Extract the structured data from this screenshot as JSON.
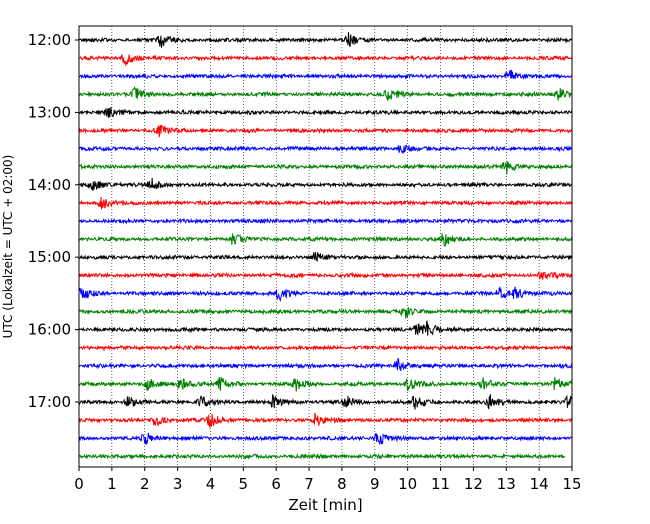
{
  "chart_data": {
    "type": "line",
    "subtype": "helicorder",
    "xlabel": "Zeit  [min]",
    "ylabel": "UTC (Lokalzeit = UTC + 02:00)",
    "xlim": [
      0,
      15
    ],
    "x_ticks": [
      0,
      1,
      2,
      3,
      4,
      5,
      6,
      7,
      8,
      9,
      10,
      11,
      12,
      13,
      14,
      15
    ],
    "x_tick_labels": [
      "0",
      "1",
      "2",
      "3",
      "4",
      "5",
      "6",
      "7",
      "8",
      "9",
      "10",
      "11",
      "12",
      "13",
      "14",
      "15"
    ],
    "y_tick_labels": [
      "12:00",
      "13:00",
      "14:00",
      "15:00",
      "16:00",
      "17:00"
    ],
    "trace_interval_min": 15,
    "grid": "vertical dotted at each minute",
    "colors": [
      "#000000",
      "#ff0000",
      "#0000ff",
      "#008000"
    ],
    "traces": [
      {
        "start": "12:00",
        "end_min": 15,
        "color": "#000000",
        "events": [
          2.5,
          8.2
        ]
      },
      {
        "start": "12:15",
        "end_min": 15,
        "color": "#ff0000",
        "events": [
          1.4
        ]
      },
      {
        "start": "12:30",
        "end_min": 15,
        "color": "#0000ff",
        "events": [
          13.1
        ]
      },
      {
        "start": "12:45",
        "end_min": 15,
        "color": "#008000",
        "events": [
          1.7,
          9.4,
          14.6
        ]
      },
      {
        "start": "13:00",
        "end_min": 15,
        "color": "#000000",
        "events": [
          0.9
        ]
      },
      {
        "start": "13:15",
        "end_min": 15,
        "color": "#ff0000",
        "events": [
          2.4
        ]
      },
      {
        "start": "13:30",
        "end_min": 15,
        "color": "#0000ff",
        "events": [
          9.8
        ]
      },
      {
        "start": "13:45",
        "end_min": 15,
        "color": "#008000",
        "events": [
          13.0
        ]
      },
      {
        "start": "14:00",
        "end_min": 15,
        "color": "#000000",
        "events": [
          0.4,
          2.2
        ]
      },
      {
        "start": "14:15",
        "end_min": 15,
        "color": "#ff0000",
        "events": [
          0.7
        ]
      },
      {
        "start": "14:30",
        "end_min": 15,
        "color": "#0000ff",
        "events": []
      },
      {
        "start": "14:45",
        "end_min": 15,
        "color": "#008000",
        "events": [
          4.7,
          11.1
        ]
      },
      {
        "start": "15:00",
        "end_min": 15,
        "color": "#000000",
        "events": [
          7.2
        ]
      },
      {
        "start": "15:15",
        "end_min": 15,
        "color": "#ff0000",
        "events": [
          14.1
        ]
      },
      {
        "start": "15:30",
        "end_min": 15,
        "color": "#0000ff",
        "events": [
          0.1,
          6.1,
          12.8,
          13.3
        ]
      },
      {
        "start": "15:45",
        "end_min": 15,
        "color": "#008000",
        "events": [
          9.9
        ]
      },
      {
        "start": "16:00",
        "end_min": 15,
        "color": "#000000",
        "events": [
          10.3,
          10.6
        ]
      },
      {
        "start": "16:15",
        "end_min": 15,
        "color": "#ff0000",
        "events": []
      },
      {
        "start": "16:30",
        "end_min": 15,
        "color": "#0000ff",
        "events": [
          9.7
        ]
      },
      {
        "start": "16:45",
        "end_min": 15,
        "color": "#008000",
        "events": [
          2.1,
          3.1,
          4.3,
          6.6,
          10.0,
          12.3,
          14.5
        ]
      },
      {
        "start": "17:00",
        "end_min": 15,
        "color": "#000000",
        "events": [
          1.5,
          3.7,
          5.9,
          8.1,
          10.2,
          12.5,
          14.9
        ]
      },
      {
        "start": "17:15",
        "end_min": 15,
        "color": "#ff0000",
        "events": [
          2.3,
          4.0,
          7.2
        ]
      },
      {
        "start": "17:30",
        "end_min": 15,
        "color": "#0000ff",
        "events": [
          2.0,
          9.1
        ]
      },
      {
        "start": "17:45",
        "end_min": 14.8,
        "color": "#008000",
        "events": []
      }
    ]
  }
}
